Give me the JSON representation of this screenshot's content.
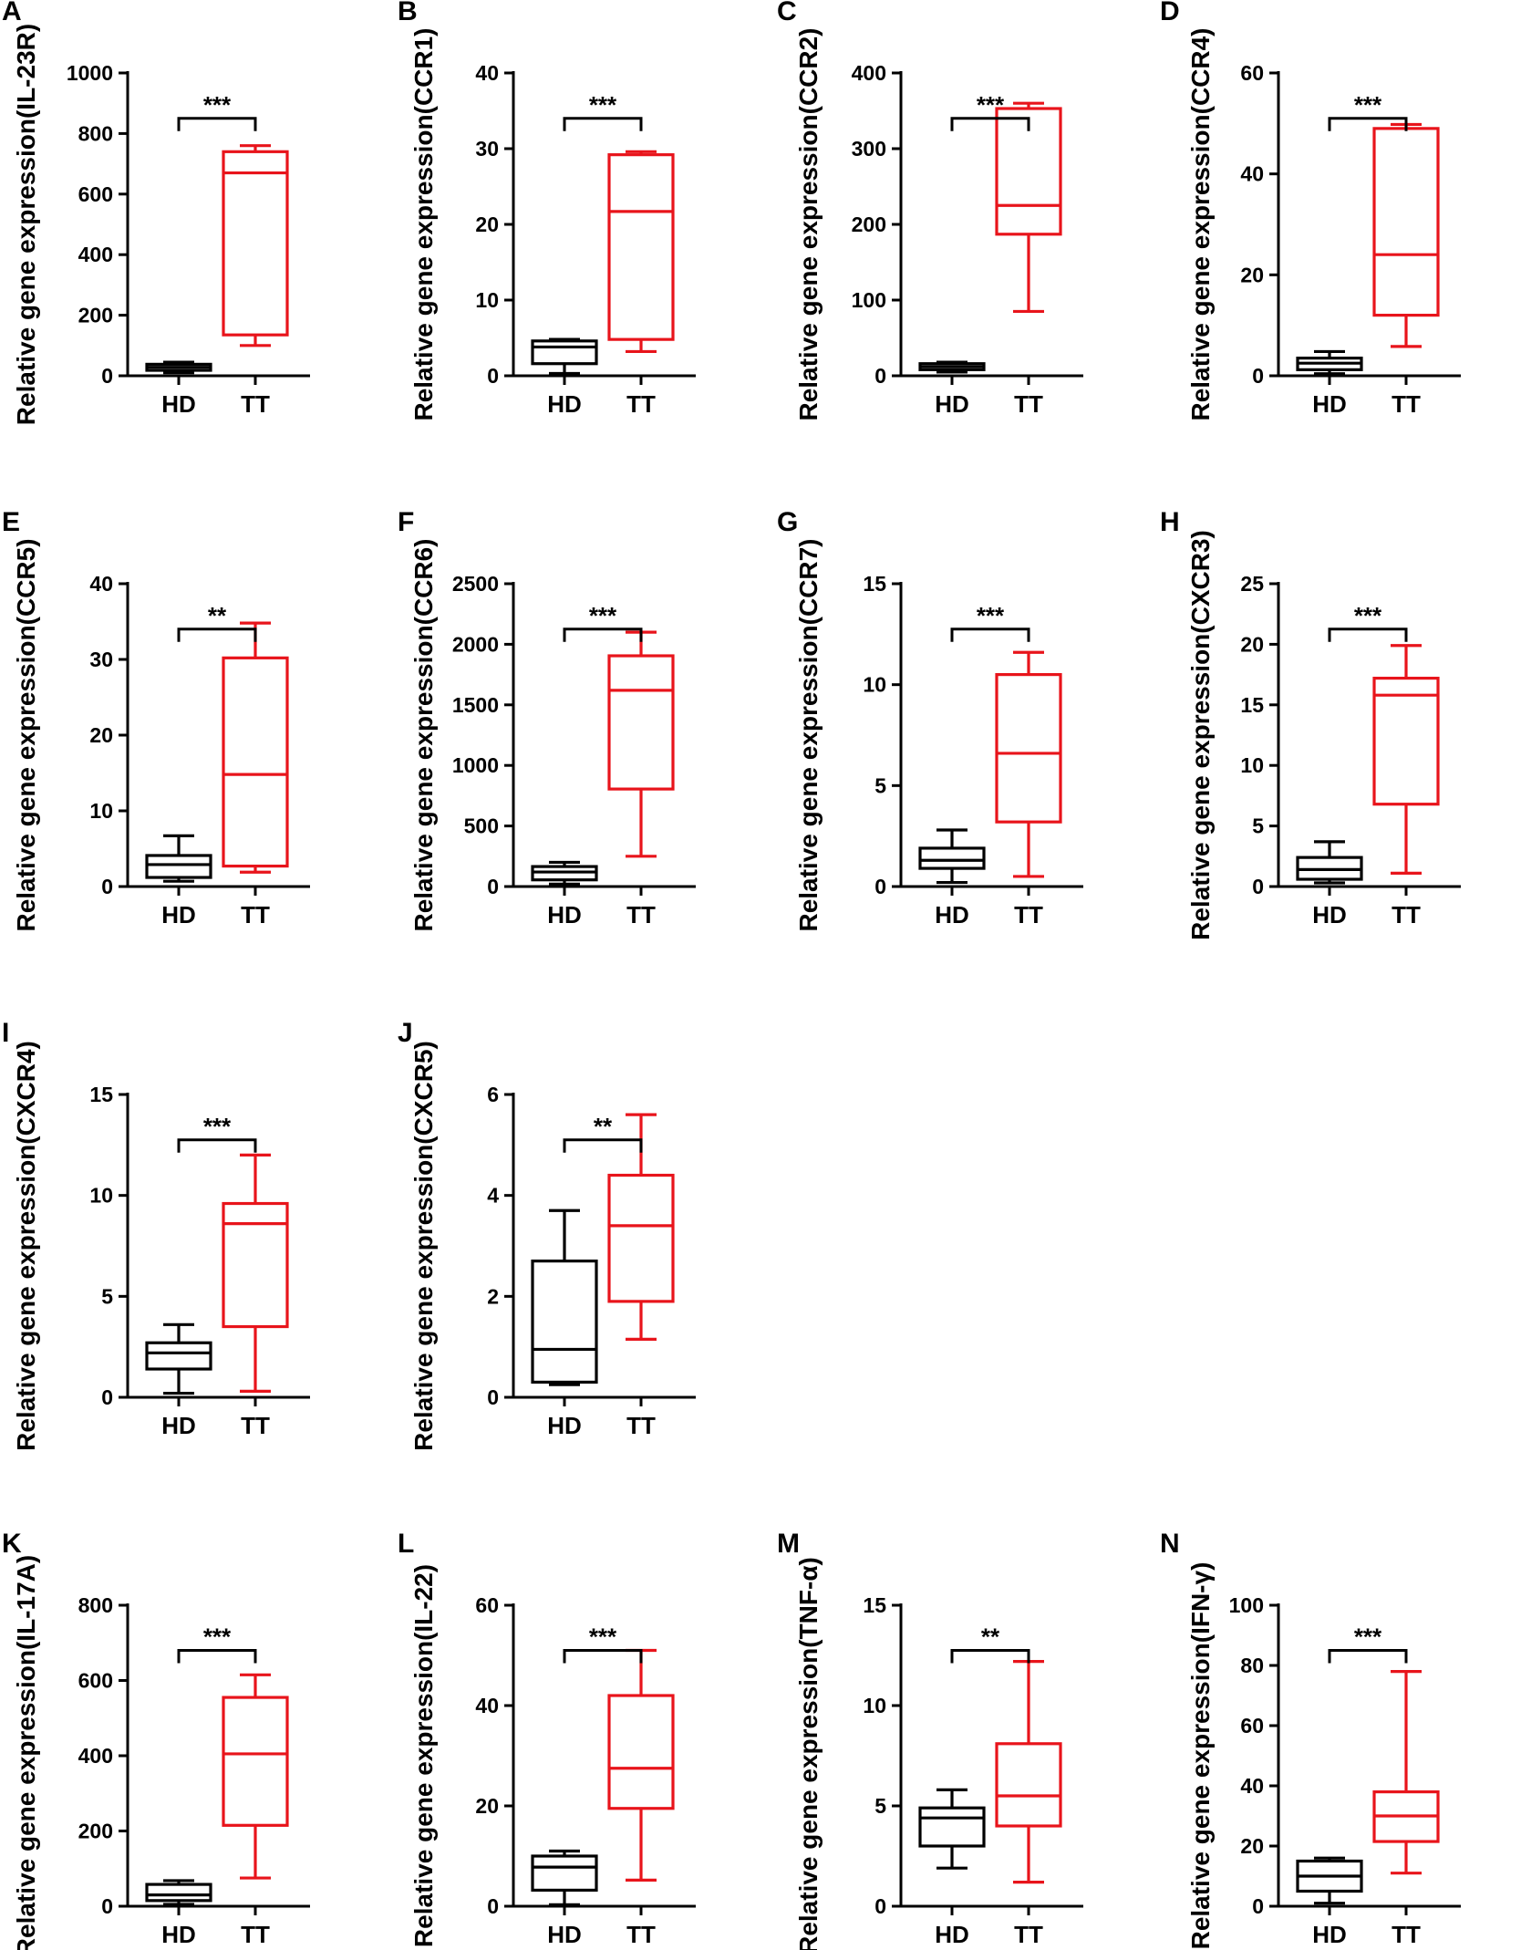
{
  "figure": {
    "colors": {
      "HD": "#000000",
      "TT": "#e8141b",
      "axis": "#000000"
    },
    "categories": [
      "HD",
      "TT"
    ]
  },
  "chart_data": [
    {
      "type": "box",
      "panel": "A",
      "ylabel": "Relative gene expression(IL-23R)",
      "ylim": [
        0,
        1000
      ],
      "yticks": [
        "0",
        "200",
        "400",
        "600",
        "800",
        "1000"
      ],
      "categories": [
        "HD",
        "TT"
      ],
      "significance": "***",
      "boxes": [
        {
          "group": "HD",
          "min": 10,
          "q1": 18,
          "median": 28,
          "q3": 38,
          "max": 45
        },
        {
          "group": "TT",
          "min": 100,
          "q1": 135,
          "median": 670,
          "q3": 740,
          "max": 760
        }
      ]
    },
    {
      "type": "box",
      "panel": "B",
      "ylabel": "Relative gene expression(CCR1)",
      "ylim": [
        0,
        40
      ],
      "yticks": [
        "0",
        "10",
        "20",
        "30",
        "40"
      ],
      "categories": [
        "HD",
        "TT"
      ],
      "significance": "***",
      "boxes": [
        {
          "group": "HD",
          "min": 0.3,
          "q1": 1.6,
          "median": 3.8,
          "q3": 4.6,
          "max": 4.8
        },
        {
          "group": "TT",
          "min": 3.2,
          "q1": 4.8,
          "median": 21.7,
          "q3": 29.2,
          "max": 29.6
        }
      ]
    },
    {
      "type": "box",
      "panel": "C",
      "ylabel": "Relative gene expression(CCR2)",
      "ylim": [
        0,
        400
      ],
      "yticks": [
        "0",
        "100",
        "200",
        "300",
        "400"
      ],
      "categories": [
        "HD",
        "TT"
      ],
      "significance": "***",
      "boxes": [
        {
          "group": "HD",
          "min": 5,
          "q1": 8,
          "median": 12,
          "q3": 16,
          "max": 18
        },
        {
          "group": "TT",
          "min": 85,
          "q1": 187,
          "median": 225,
          "q3": 353,
          "max": 360
        }
      ]
    },
    {
      "type": "box",
      "panel": "D",
      "ylabel": "Relative gene expression(CCR4)",
      "ylim": [
        0,
        60
      ],
      "yticks": [
        "0",
        "20",
        "40",
        "60"
      ],
      "categories": [
        "HD",
        "TT"
      ],
      "significance": "***",
      "boxes": [
        {
          "group": "HD",
          "min": 0.4,
          "q1": 1.2,
          "median": 2.5,
          "q3": 3.5,
          "max": 4.8
        },
        {
          "group": "TT",
          "min": 5.8,
          "q1": 12,
          "median": 24,
          "q3": 49,
          "max": 49.8
        }
      ]
    },
    {
      "type": "box",
      "panel": "E",
      "ylabel": "Relative gene expression(CCR5)",
      "ylim": [
        0,
        40
      ],
      "yticks": [
        "0",
        "10",
        "20",
        "30",
        "40"
      ],
      "categories": [
        "HD",
        "TT"
      ],
      "significance": "**",
      "boxes": [
        {
          "group": "HD",
          "min": 0.7,
          "q1": 1.2,
          "median": 2.9,
          "q3": 4.1,
          "max": 6.7
        },
        {
          "group": "TT",
          "min": 1.9,
          "q1": 2.7,
          "median": 14.8,
          "q3": 30.2,
          "max": 34.8
        }
      ]
    },
    {
      "type": "box",
      "panel": "F",
      "ylabel": "Relative gene expression(CCR6)",
      "ylim": [
        0,
        2500
      ],
      "yticks": [
        "0",
        "500",
        "1000",
        "1500",
        "2000",
        "2500"
      ],
      "categories": [
        "HD",
        "TT"
      ],
      "significance": "***",
      "boxes": [
        {
          "group": "HD",
          "min": 20,
          "q1": 55,
          "median": 120,
          "q3": 165,
          "max": 200
        },
        {
          "group": "TT",
          "min": 250,
          "q1": 805,
          "median": 1620,
          "q3": 1905,
          "max": 2100
        }
      ]
    },
    {
      "type": "box",
      "panel": "G",
      "ylabel": "Relative gene expression(CCR7)",
      "ylim": [
        0,
        15
      ],
      "yticks": [
        "0",
        "5",
        "10",
        "15"
      ],
      "categories": [
        "HD",
        "TT"
      ],
      "significance": "***",
      "boxes": [
        {
          "group": "HD",
          "min": 0.2,
          "q1": 0.9,
          "median": 1.3,
          "q3": 1.9,
          "max": 2.8
        },
        {
          "group": "TT",
          "min": 0.5,
          "q1": 3.2,
          "median": 6.6,
          "q3": 10.5,
          "max": 11.6
        }
      ]
    },
    {
      "type": "box",
      "panel": "H",
      "ylabel": "Relative gene expression(CXCR3)",
      "ylim": [
        0,
        25
      ],
      "yticks": [
        "0",
        "5",
        "10",
        "15",
        "20",
        "25"
      ],
      "categories": [
        "HD",
        "TT"
      ],
      "significance": "***",
      "boxes": [
        {
          "group": "HD",
          "min": 0.3,
          "q1": 0.6,
          "median": 1.4,
          "q3": 2.4,
          "max": 3.7
        },
        {
          "group": "TT",
          "min": 1.1,
          "q1": 6.8,
          "median": 15.8,
          "q3": 17.2,
          "max": 19.9
        }
      ]
    },
    {
      "type": "box",
      "panel": "I",
      "ylabel": "Relative gene expression(CXCR4)",
      "ylim": [
        0,
        15
      ],
      "yticks": [
        "0",
        "5",
        "10",
        "15"
      ],
      "categories": [
        "HD",
        "TT"
      ],
      "significance": "***",
      "boxes": [
        {
          "group": "HD",
          "min": 0.2,
          "q1": 1.4,
          "median": 2.2,
          "q3": 2.7,
          "max": 3.6
        },
        {
          "group": "TT",
          "min": 0.3,
          "q1": 3.5,
          "median": 8.6,
          "q3": 9.6,
          "max": 12
        }
      ]
    },
    {
      "type": "box",
      "panel": "J",
      "ylabel": "Relative gene expression(CXCR5)",
      "ylim": [
        0,
        6
      ],
      "yticks": [
        "0",
        "2",
        "4",
        "6"
      ],
      "categories": [
        "HD",
        "TT"
      ],
      "significance": "**",
      "boxes": [
        {
          "group": "HD",
          "min": 0.25,
          "q1": 0.3,
          "median": 0.95,
          "q3": 2.7,
          "max": 3.7
        },
        {
          "group": "TT",
          "min": 1.15,
          "q1": 1.9,
          "median": 3.4,
          "q3": 4.4,
          "max": 5.6
        }
      ]
    },
    {
      "type": "box",
      "panel": "K",
      "ylabel": "Relative gene expression(IL-17A)",
      "ylim": [
        0,
        800
      ],
      "yticks": [
        "0",
        "200",
        "400",
        "600",
        "800"
      ],
      "categories": [
        "HD",
        "TT"
      ],
      "significance": "***",
      "boxes": [
        {
          "group": "HD",
          "min": 5,
          "q1": 15,
          "median": 30,
          "q3": 58,
          "max": 68
        },
        {
          "group": "TT",
          "min": 75,
          "q1": 215,
          "median": 405,
          "q3": 555,
          "max": 615
        }
      ]
    },
    {
      "type": "box",
      "panel": "L",
      "ylabel": "Relative gene expression(IL-22)",
      "ylim": [
        0,
        60
      ],
      "yticks": [
        "0",
        "20",
        "40",
        "60"
      ],
      "categories": [
        "HD",
        "TT"
      ],
      "significance": "***",
      "boxes": [
        {
          "group": "HD",
          "min": 0.3,
          "q1": 3.2,
          "median": 7.8,
          "q3": 10,
          "max": 11
        },
        {
          "group": "TT",
          "min": 5.2,
          "q1": 19.5,
          "median": 27.5,
          "q3": 42,
          "max": 51
        }
      ]
    },
    {
      "type": "box",
      "panel": "M",
      "ylabel": "Relative gene expression(TNF-α)",
      "ylim": [
        0,
        15
      ],
      "yticks": [
        "0",
        "5",
        "10",
        "15"
      ],
      "categories": [
        "HD",
        "TT"
      ],
      "significance": "**",
      "boxes": [
        {
          "group": "HD",
          "min": 1.9,
          "q1": 3.0,
          "median": 4.4,
          "q3": 4.9,
          "max": 5.8
        },
        {
          "group": "TT",
          "min": 1.2,
          "q1": 4.0,
          "median": 5.5,
          "q3": 8.1,
          "max": 12.2
        }
      ]
    },
    {
      "type": "box",
      "panel": "N",
      "ylabel": "Relative gene expression(IFN-γ)",
      "ylim": [
        0,
        100
      ],
      "yticks": [
        "0",
        "20",
        "40",
        "60",
        "80",
        "100"
      ],
      "categories": [
        "HD",
        "TT"
      ],
      "significance": "***",
      "boxes": [
        {
          "group": "HD",
          "min": 1,
          "q1": 5,
          "median": 10,
          "q3": 15,
          "max": 16
        },
        {
          "group": "TT",
          "min": 11,
          "q1": 21.5,
          "median": 30,
          "q3": 38,
          "max": 78
        }
      ]
    }
  ]
}
